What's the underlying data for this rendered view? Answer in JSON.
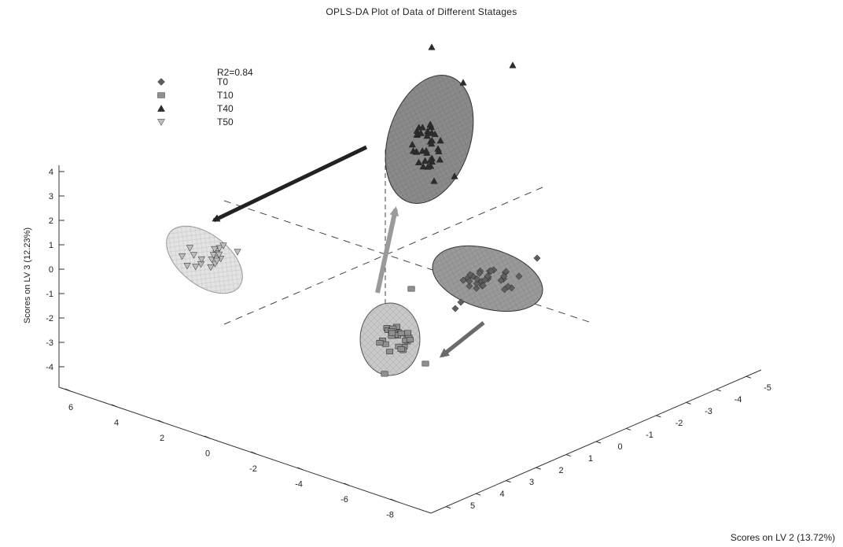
{
  "chart_data": {
    "type": "scatter",
    "title": "OPLS-DA Plot of Data of Different Statages",
    "annotation": "R2=0.84",
    "zlabel": "Scores on LV 3 (12.23%)",
    "ylabel": "Scores on LV 2 (13.72%)",
    "xlabel": "",
    "xlim": [
      -8,
      6
    ],
    "ylim": [
      -5,
      5
    ],
    "zlim": [
      -4,
      4
    ],
    "z_ticks": [
      "4",
      "3",
      "2",
      "1",
      "0",
      "-1",
      "-2",
      "-3",
      "-4"
    ],
    "x_ticks": [
      "6",
      "4",
      "2",
      "0",
      "-2",
      "-4",
      "-6",
      "-8"
    ],
    "y_ticks": [
      "-5",
      "-4",
      "-3",
      "-2",
      "-1",
      "0",
      "1",
      "2",
      "3",
      "4",
      "5"
    ],
    "legend_placement": "top-left",
    "series": [
      {
        "name": "T0",
        "marker": "diamond",
        "color": "#5f5f5f"
      },
      {
        "name": "T10",
        "marker": "square",
        "color": "#8f8f8f"
      },
      {
        "name": "T40",
        "marker": "triangle-up",
        "color": "#2c2c2c"
      },
      {
        "name": "T50",
        "marker": "triangle-down",
        "color": "#bdbdbd"
      }
    ]
  }
}
